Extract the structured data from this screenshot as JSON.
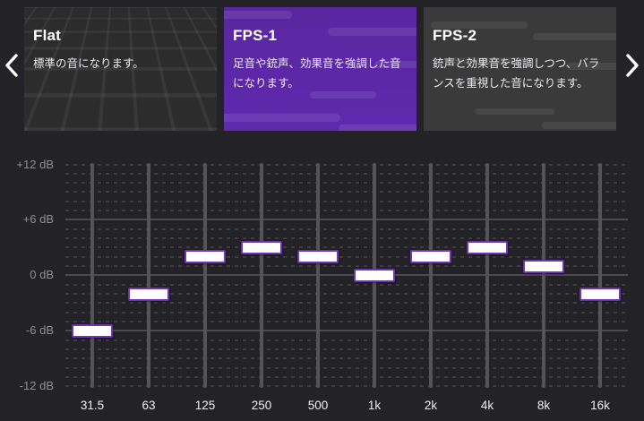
{
  "carousel": {
    "prev_label": "前のプリセット",
    "next_label": "次のプリセット",
    "cards": [
      {
        "id": "flat",
        "title": "Flat",
        "description": "標準の音になります。",
        "selected": false
      },
      {
        "id": "fps1",
        "title": "FPS-1",
        "description": "足音や銃声、効果音を強調した音になります。",
        "selected": true
      },
      {
        "id": "fps2",
        "title": "FPS-2",
        "description": "銃声と効果音を強調しつつ、バランスを重視した音になります。",
        "selected": false
      }
    ]
  },
  "equalizer": {
    "unit": "dB",
    "axis": {
      "min": -12,
      "max": 12,
      "step": 1,
      "solid_levels": [
        6,
        0,
        -6
      ],
      "labels": [
        {
          "level": 12,
          "text": "+12 dB"
        },
        {
          "level": 6,
          "text": "+6 dB"
        },
        {
          "level": 0,
          "text": "0 dB"
        },
        {
          "level": -6,
          "text": "-6 dB"
        },
        {
          "level": -12,
          "text": "-12 dB"
        }
      ]
    },
    "bands": [
      {
        "freq": "31.5",
        "gain_db": -6
      },
      {
        "freq": "63",
        "gain_db": -2
      },
      {
        "freq": "125",
        "gain_db": 2
      },
      {
        "freq": "250",
        "gain_db": 3
      },
      {
        "freq": "500",
        "gain_db": 2
      },
      {
        "freq": "1k",
        "gain_db": 0
      },
      {
        "freq": "2k",
        "gain_db": 2
      },
      {
        "freq": "4k",
        "gain_db": 3
      },
      {
        "freq": "8k",
        "gain_db": 1
      },
      {
        "freq": "16k",
        "gain_db": -2
      }
    ]
  },
  "colors": {
    "background": "#232226",
    "selected_card": "#5c28a6",
    "handle_fill": "#ffffff",
    "handle_border": "#7133b5",
    "grid_solid": "#4a494d",
    "grid_dashed": "#3d3c40"
  }
}
